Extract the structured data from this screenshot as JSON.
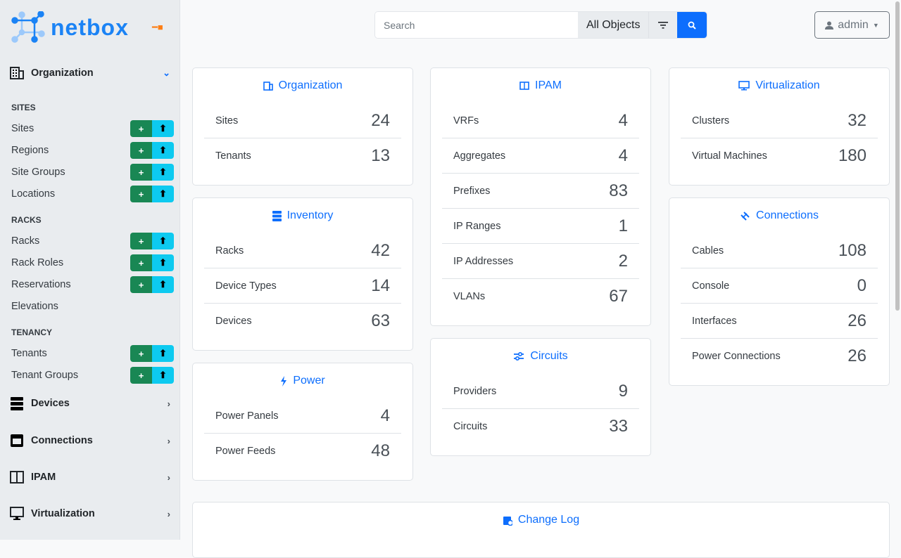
{
  "brand": {
    "name": "netbox",
    "accent": "#1b83f5"
  },
  "sidebar": {
    "sections": [
      {
        "label": "Organization",
        "icon": "building-icon",
        "expanded": true
      },
      {
        "label": "Devices",
        "icon": "server-icon"
      },
      {
        "label": "Connections",
        "icon": "ethernet-icon"
      },
      {
        "label": "IPAM",
        "icon": "counter-icon"
      },
      {
        "label": "Virtualization",
        "icon": "monitor-icon"
      }
    ],
    "groups": [
      "SITES",
      "RACKS",
      "TENANCY"
    ],
    "items": [
      {
        "label": "Sites",
        "buttons": true
      },
      {
        "label": "Regions",
        "buttons": true
      },
      {
        "label": "Site Groups",
        "buttons": true
      },
      {
        "label": "Locations",
        "buttons": true
      },
      {
        "label": "Racks",
        "buttons": true
      },
      {
        "label": "Rack Roles",
        "buttons": true
      },
      {
        "label": "Reservations",
        "buttons": true
      },
      {
        "label": "Elevations",
        "buttons": false
      },
      {
        "label": "Tenants",
        "buttons": true
      },
      {
        "label": "Tenant Groups",
        "buttons": true
      }
    ],
    "add_glyph": "+",
    "import_glyph": "⬆"
  },
  "search": {
    "placeholder": "Search",
    "scope": "All Objects"
  },
  "user": {
    "name": "admin"
  },
  "cards": {
    "organization": {
      "title": "Organization",
      "rows": [
        {
          "label": "Sites",
          "value": "24"
        },
        {
          "label": "Tenants",
          "value": "13"
        }
      ]
    },
    "inventory": {
      "title": "Inventory",
      "rows": [
        {
          "label": "Racks",
          "value": "42"
        },
        {
          "label": "Device Types",
          "value": "14"
        },
        {
          "label": "Devices",
          "value": "63"
        }
      ]
    },
    "power": {
      "title": "Power",
      "rows": [
        {
          "label": "Power Panels",
          "value": "4"
        },
        {
          "label": "Power Feeds",
          "value": "48"
        }
      ]
    },
    "ipam": {
      "title": "IPAM",
      "rows": [
        {
          "label": "VRFs",
          "value": "4"
        },
        {
          "label": "Aggregates",
          "value": "4"
        },
        {
          "label": "Prefixes",
          "value": "83"
        },
        {
          "label": "IP Ranges",
          "value": "1"
        },
        {
          "label": "IP Addresses",
          "value": "2"
        },
        {
          "label": "VLANs",
          "value": "67"
        }
      ]
    },
    "circuits": {
      "title": "Circuits",
      "rows": [
        {
          "label": "Providers",
          "value": "9"
        },
        {
          "label": "Circuits",
          "value": "33"
        }
      ]
    },
    "virtualization": {
      "title": "Virtualization",
      "rows": [
        {
          "label": "Clusters",
          "value": "32"
        },
        {
          "label": "Virtual Machines",
          "value": "180"
        }
      ]
    },
    "connections": {
      "title": "Connections",
      "rows": [
        {
          "label": "Cables",
          "value": "108"
        },
        {
          "label": "Console",
          "value": "0"
        },
        {
          "label": "Interfaces",
          "value": "26"
        },
        {
          "label": "Power Connections",
          "value": "26"
        }
      ]
    },
    "changelog": {
      "title": "Change Log"
    }
  }
}
